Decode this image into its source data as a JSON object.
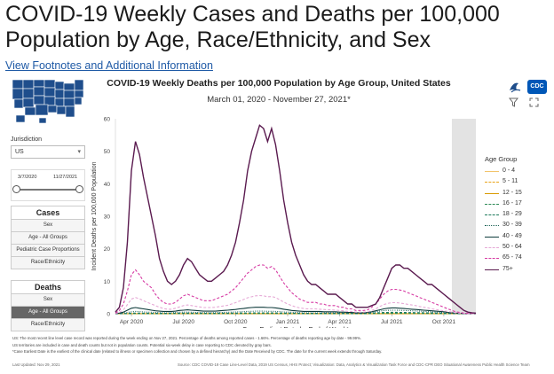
{
  "page": {
    "title": "COVID-19 Weekly Cases and Deaths per 100,000 Population by Age, Race/Ethnicity, and Sex",
    "footnote_link": "View Footnotes and Additional Information"
  },
  "header": {
    "chart_title": "COVID-19 Weekly Deaths per 100,000 Population by Age Group, United States",
    "chart_subtitle": "March 01, 2020 - November 27, 2021*",
    "cdc_logo_text": "CDC"
  },
  "sidebar": {
    "jurisdiction_label": "Jurisdiction",
    "jurisdiction_value": "US",
    "date_start": "3/7/2020",
    "date_end": "11/27/2021",
    "cases": {
      "heading": "Cases",
      "items": [
        "Sex",
        "Age - All Groups",
        "Pediatric Case Proportions",
        "Race/Ethnicity"
      ]
    },
    "deaths": {
      "heading": "Deaths",
      "items": [
        "Sex",
        "Age - All Groups",
        "Race/Ethnicity"
      ],
      "active_index": 1
    }
  },
  "legend": {
    "title": "Age Group",
    "items": [
      {
        "label": "0 - 4",
        "color": "#f2c46b",
        "dash": "solid"
      },
      {
        "label": "5 - 11",
        "color": "#e8a317",
        "dash": "dash"
      },
      {
        "label": "12 - 15",
        "color": "#d99a00",
        "dash": "solid"
      },
      {
        "label": "16 - 17",
        "color": "#2e8b57",
        "dash": "dash"
      },
      {
        "label": "18 - 29",
        "color": "#1e7a5a",
        "dash": "dash"
      },
      {
        "label": "30 - 39",
        "color": "#20665a",
        "dash": "dot"
      },
      {
        "label": "40 - 49",
        "color": "#0e3b3b",
        "dash": "solid"
      },
      {
        "label": "50 - 64",
        "color": "#e6a9d6",
        "dash": "dash"
      },
      {
        "label": "65 - 74",
        "color": "#d63aa3",
        "dash": "dash"
      },
      {
        "label": "75+",
        "color": "#5a1a4f",
        "dash": "solid"
      }
    ]
  },
  "chart_data": {
    "type": "line",
    "title": "COVID-19 Weekly Deaths per 100,000 Population by Age Group, United States",
    "subtitle": "March 01, 2020 - November 27, 2021*",
    "xlabel": "Case Earliest Date by End of Week*",
    "ylabel": "Incident Deaths per 100,000 Population",
    "ylim": [
      0,
      60
    ],
    "yticks": [
      "0",
      "10",
      "20",
      "30",
      "40",
      "50",
      "60"
    ],
    "xticks": [
      "Apr 2020",
      "Jul 2020",
      "Oct 2020",
      "Jan 2021",
      "Apr 2021",
      "Jul 2021",
      "Oct 2021"
    ],
    "x_range_weeks": [
      0,
      90
    ],
    "xtick_weeks": [
      4,
      17,
      30,
      43,
      56,
      69,
      82
    ],
    "shaded_from_week": 84,
    "series": [
      {
        "name": "75+",
        "color": "#5a1a4f",
        "dash": "solid",
        "values": [
          0.5,
          2,
          8,
          22,
          44,
          53,
          49,
          42,
          36,
          30,
          24,
          17,
          13,
          10,
          9,
          10,
          12,
          15,
          17,
          16,
          14,
          12,
          11,
          10,
          10,
          11,
          12,
          13,
          15,
          18,
          22,
          28,
          35,
          44,
          50,
          54,
          58,
          57,
          53,
          57,
          52,
          44,
          35,
          28,
          22,
          18,
          15,
          12,
          10,
          9,
          9,
          8,
          7,
          6,
          6,
          6,
          5,
          4,
          3,
          3,
          2,
          2,
          2,
          2,
          2.5,
          3,
          5,
          8,
          11,
          14,
          15,
          15,
          14,
          14,
          13,
          12,
          11,
          10,
          9,
          9,
          8,
          7,
          6,
          5,
          4,
          3,
          2,
          1,
          0.5,
          0.3,
          0.2
        ]
      },
      {
        "name": "65 - 74",
        "color": "#d63aa3",
        "dash": "dash",
        "values": [
          0.2,
          1,
          3,
          7,
          12,
          13.5,
          12,
          10,
          9,
          8,
          6,
          4.5,
          3.5,
          3,
          3,
          3.5,
          4.5,
          5.5,
          6,
          5.5,
          5,
          4.5,
          4,
          4,
          4,
          4.5,
          5,
          5.5,
          6,
          7,
          8,
          9.5,
          11,
          12.5,
          13.5,
          14.5,
          15,
          15,
          14,
          14.5,
          13.5,
          11.5,
          9.5,
          8,
          6.5,
          5.5,
          4.5,
          4,
          3.5,
          3.5,
          3.5,
          3,
          3,
          2.5,
          2.5,
          2.5,
          2,
          2,
          1.5,
          1.5,
          1,
          1,
          1,
          1.2,
          2,
          3,
          4.5,
          6,
          7,
          7.5,
          7.5,
          7.3,
          7,
          6.5,
          6,
          5.5,
          5,
          4.5,
          4,
          3.5,
          3,
          2.5,
          2,
          1.5,
          1,
          0.6,
          0.4,
          0.2,
          0.1,
          0.1,
          0.1
        ]
      },
      {
        "name": "50 - 64",
        "color": "#e6a9d6",
        "dash": "dash",
        "values": [
          0.1,
          0.4,
          1.2,
          2.8,
          4.5,
          5,
          4.6,
          4,
          3.5,
          3,
          2.5,
          2,
          1.6,
          1.4,
          1.4,
          1.7,
          2.1,
          2.5,
          2.7,
          2.5,
          2.3,
          2.1,
          1.9,
          1.9,
          1.9,
          2,
          2.2,
          2.4,
          2.6,
          3,
          3.4,
          3.9,
          4.4,
          4.9,
          5.2,
          5.5,
          5.6,
          5.5,
          5.2,
          5.3,
          5,
          4.3,
          3.6,
          3,
          2.5,
          2.1,
          1.8,
          1.6,
          1.5,
          1.5,
          1.5,
          1.4,
          1.3,
          1.2,
          1.2,
          1.1,
          1,
          0.9,
          0.7,
          0.7,
          0.5,
          0.5,
          0.5,
          0.6,
          1,
          1.5,
          2.2,
          2.8,
          3.2,
          3.4,
          3.4,
          3.3,
          3.1,
          2.9,
          2.7,
          2.5,
          2.2,
          2,
          1.8,
          1.5,
          1.3,
          1.1,
          0.9,
          0.7,
          0.5,
          0.3,
          0.2,
          0.1,
          0.05,
          0.05,
          0.05
        ]
      },
      {
        "name": "40 - 49",
        "color": "#0e3b3b",
        "dash": "solid",
        "values": [
          0.05,
          0.2,
          0.5,
          1.1,
          1.7,
          1.9,
          1.7,
          1.5,
          1.3,
          1.1,
          0.9,
          0.8,
          0.7,
          0.7,
          0.7,
          0.8,
          1,
          1.1,
          1.2,
          1.1,
          1,
          0.9,
          0.8,
          0.8,
          0.8,
          0.8,
          0.9,
          1,
          1.1,
          1.2,
          1.3,
          1.5,
          1.6,
          1.8,
          1.9,
          2,
          2,
          2,
          1.9,
          1.9,
          1.8,
          1.6,
          1.4,
          1.2,
          1,
          0.9,
          0.8,
          0.7,
          0.7,
          0.7,
          0.7,
          0.7,
          0.6,
          0.6,
          0.6,
          0.6,
          0.5,
          0.5,
          0.4,
          0.4,
          0.3,
          0.3,
          0.3,
          0.4,
          0.6,
          0.9,
          1.2,
          1.5,
          1.7,
          1.8,
          1.8,
          1.7,
          1.6,
          1.5,
          1.4,
          1.3,
          1.2,
          1.1,
          1,
          0.9,
          0.8,
          0.7,
          0.6,
          0.4,
          0.3,
          0.2,
          0.1,
          0.05,
          0.03,
          0.03,
          0.03
        ]
      },
      {
        "name": "30 - 39",
        "color": "#20665a",
        "dash": "dot",
        "values": [
          0.02,
          0.08,
          0.2,
          0.4,
          0.6,
          0.7,
          0.65,
          0.55,
          0.5,
          0.45,
          0.4,
          0.35,
          0.3,
          0.3,
          0.35,
          0.4,
          0.45,
          0.5,
          0.5,
          0.45,
          0.4,
          0.38,
          0.35,
          0.35,
          0.35,
          0.35,
          0.4,
          0.42,
          0.45,
          0.5,
          0.55,
          0.6,
          0.65,
          0.7,
          0.75,
          0.8,
          0.8,
          0.8,
          0.75,
          0.75,
          0.7,
          0.65,
          0.55,
          0.5,
          0.45,
          0.4,
          0.35,
          0.33,
          0.3,
          0.3,
          0.3,
          0.3,
          0.3,
          0.3,
          0.3,
          0.28,
          0.25,
          0.25,
          0.2,
          0.2,
          0.18,
          0.18,
          0.2,
          0.25,
          0.4,
          0.6,
          0.8,
          0.95,
          1.05,
          1.1,
          1.1,
          1.05,
          1,
          0.95,
          0.9,
          0.85,
          0.8,
          0.7,
          0.65,
          0.55,
          0.5,
          0.42,
          0.35,
          0.25,
          0.18,
          0.12,
          0.06,
          0.03,
          0.02,
          0.02,
          0.02
        ]
      },
      {
        "name": "18 - 29",
        "color": "#1e7a5a",
        "dash": "dash",
        "values": [
          0.01,
          0.03,
          0.06,
          0.12,
          0.18,
          0.2,
          0.18,
          0.16,
          0.15,
          0.14,
          0.13,
          0.12,
          0.12,
          0.12,
          0.13,
          0.15,
          0.17,
          0.18,
          0.18,
          0.17,
          0.16,
          0.15,
          0.14,
          0.14,
          0.14,
          0.14,
          0.15,
          0.16,
          0.17,
          0.18,
          0.2,
          0.22,
          0.23,
          0.25,
          0.26,
          0.27,
          0.27,
          0.27,
          0.26,
          0.26,
          0.25,
          0.22,
          0.2,
          0.18,
          0.16,
          0.15,
          0.14,
          0.13,
          0.13,
          0.13,
          0.13,
          0.13,
          0.13,
          0.12,
          0.12,
          0.12,
          0.11,
          0.11,
          0.1,
          0.1,
          0.09,
          0.09,
          0.1,
          0.12,
          0.18,
          0.25,
          0.32,
          0.38,
          0.42,
          0.44,
          0.44,
          0.42,
          0.4,
          0.38,
          0.36,
          0.34,
          0.32,
          0.3,
          0.27,
          0.24,
          0.21,
          0.18,
          0.15,
          0.11,
          0.08,
          0.05,
          0.03,
          0.02,
          0.01,
          0.01,
          0.01
        ]
      },
      {
        "name": "16 - 17",
        "color": "#2e8b57",
        "dash": "dash",
        "values": [
          0.005,
          0.01,
          0.02,
          0.03,
          0.04,
          0.05,
          0.05,
          0.04,
          0.04,
          0.04,
          0.04,
          0.04,
          0.04,
          0.04,
          0.04,
          0.05,
          0.05,
          0.05,
          0.05,
          0.05,
          0.05,
          0.05,
          0.04,
          0.04,
          0.04,
          0.04,
          0.05,
          0.05,
          0.05,
          0.05,
          0.06,
          0.06,
          0.06,
          0.07,
          0.07,
          0.07,
          0.07,
          0.07,
          0.07,
          0.07,
          0.07,
          0.06,
          0.06,
          0.05,
          0.05,
          0.05,
          0.04,
          0.04,
          0.04,
          0.04,
          0.04,
          0.04,
          0.04,
          0.04,
          0.04,
          0.04,
          0.04,
          0.04,
          0.03,
          0.03,
          0.03,
          0.03,
          0.03,
          0.04,
          0.05,
          0.07,
          0.09,
          0.1,
          0.11,
          0.11,
          0.11,
          0.11,
          0.1,
          0.1,
          0.09,
          0.09,
          0.08,
          0.08,
          0.07,
          0.06,
          0.05,
          0.05,
          0.04,
          0.03,
          0.02,
          0.015,
          0.01,
          0.005,
          0.005,
          0.005,
          0.005
        ]
      },
      {
        "name": "12 - 15",
        "color": "#d99a00",
        "dash": "solid",
        "values": [
          0,
          0.005,
          0.01,
          0.015,
          0.02,
          0.02,
          0.02,
          0.02,
          0.02,
          0.02,
          0.02,
          0.02,
          0.02,
          0.02,
          0.02,
          0.02,
          0.02,
          0.02,
          0.02,
          0.02,
          0.02,
          0.02,
          0.02,
          0.02,
          0.02,
          0.02,
          0.02,
          0.02,
          0.02,
          0.02,
          0.02,
          0.025,
          0.025,
          0.025,
          0.03,
          0.03,
          0.03,
          0.03,
          0.03,
          0.03,
          0.03,
          0.025,
          0.025,
          0.02,
          0.02,
          0.02,
          0.02,
          0.02,
          0.02,
          0.02,
          0.02,
          0.02,
          0.02,
          0.02,
          0.02,
          0.02,
          0.02,
          0.02,
          0.015,
          0.015,
          0.015,
          0.015,
          0.015,
          0.02,
          0.025,
          0.03,
          0.035,
          0.04,
          0.04,
          0.04,
          0.04,
          0.04,
          0.04,
          0.04,
          0.035,
          0.035,
          0.03,
          0.03,
          0.03,
          0.025,
          0.02,
          0.02,
          0.015,
          0.01,
          0.01,
          0.005,
          0.005,
          0,
          0,
          0,
          0
        ]
      },
      {
        "name": "5 - 11",
        "color": "#e8a317",
        "dash": "dash",
        "values": [
          0,
          0.002,
          0.005,
          0.008,
          0.01,
          0.01,
          0.01,
          0.01,
          0.01,
          0.01,
          0.01,
          0.01,
          0.01,
          0.01,
          0.01,
          0.01,
          0.01,
          0.01,
          0.01,
          0.01,
          0.01,
          0.01,
          0.01,
          0.01,
          0.01,
          0.01,
          0.01,
          0.01,
          0.01,
          0.01,
          0.01,
          0.012,
          0.012,
          0.012,
          0.014,
          0.014,
          0.014,
          0.014,
          0.014,
          0.014,
          0.014,
          0.012,
          0.012,
          0.01,
          0.01,
          0.01,
          0.01,
          0.01,
          0.01,
          0.01,
          0.01,
          0.01,
          0.01,
          0.01,
          0.01,
          0.01,
          0.01,
          0.01,
          0.008,
          0.008,
          0.008,
          0.008,
          0.008,
          0.01,
          0.012,
          0.014,
          0.016,
          0.018,
          0.018,
          0.018,
          0.018,
          0.018,
          0.018,
          0.018,
          0.016,
          0.016,
          0.014,
          0.014,
          0.014,
          0.012,
          0.01,
          0.01,
          0.008,
          0.005,
          0.005,
          0.002,
          0.002,
          0,
          0,
          0,
          0
        ]
      },
      {
        "name": "0 - 4",
        "color": "#f2c46b",
        "dash": "solid",
        "values": [
          0,
          0.003,
          0.006,
          0.01,
          0.012,
          0.012,
          0.012,
          0.012,
          0.012,
          0.012,
          0.012,
          0.012,
          0.012,
          0.012,
          0.012,
          0.012,
          0.012,
          0.012,
          0.012,
          0.012,
          0.012,
          0.012,
          0.012,
          0.012,
          0.012,
          0.012,
          0.012,
          0.012,
          0.012,
          0.012,
          0.012,
          0.013,
          0.013,
          0.013,
          0.014,
          0.014,
          0.014,
          0.014,
          0.014,
          0.014,
          0.014,
          0.013,
          0.013,
          0.012,
          0.012,
          0.012,
          0.012,
          0.012,
          0.012,
          0.012,
          0.012,
          0.012,
          0.012,
          0.012,
          0.012,
          0.012,
          0.012,
          0.012,
          0.01,
          0.01,
          0.01,
          0.01,
          0.01,
          0.012,
          0.013,
          0.014,
          0.015,
          0.016,
          0.016,
          0.016,
          0.016,
          0.016,
          0.016,
          0.016,
          0.015,
          0.015,
          0.014,
          0.014,
          0.014,
          0.013,
          0.012,
          0.012,
          0.01,
          0.007,
          0.006,
          0.003,
          0.003,
          0,
          0,
          0,
          0
        ]
      }
    ]
  },
  "footer": {
    "notes": [
      "US: The most recent line level case record was reported during the week ending on Nov 27, 2021. Percentage of deaths among reported cases - 1.66%. Percentage of deaths reporting age by date - 99.99%.",
      "US territories are included in case and death counts but not in population counts. Potential six-week delay in case reporting to CDC denoted by gray bars.",
      "*Case Earliest Date is the earliest of the clinical date (related to illness or specimen collection and chosen by a defined hierarchy) and the Date Received by CDC. The date for the current week extends through Saturday."
    ],
    "last_updated": "Last Updated: Nov 29, 2021",
    "source": "Source: CDC COVID-19 Case Line-Level Data, 2019 US Census, HHS Protect; Visualization: Data, Analytics & Visualization Task Force and CDC-CPR DEO Situational Awareness Public Health Science Team"
  }
}
